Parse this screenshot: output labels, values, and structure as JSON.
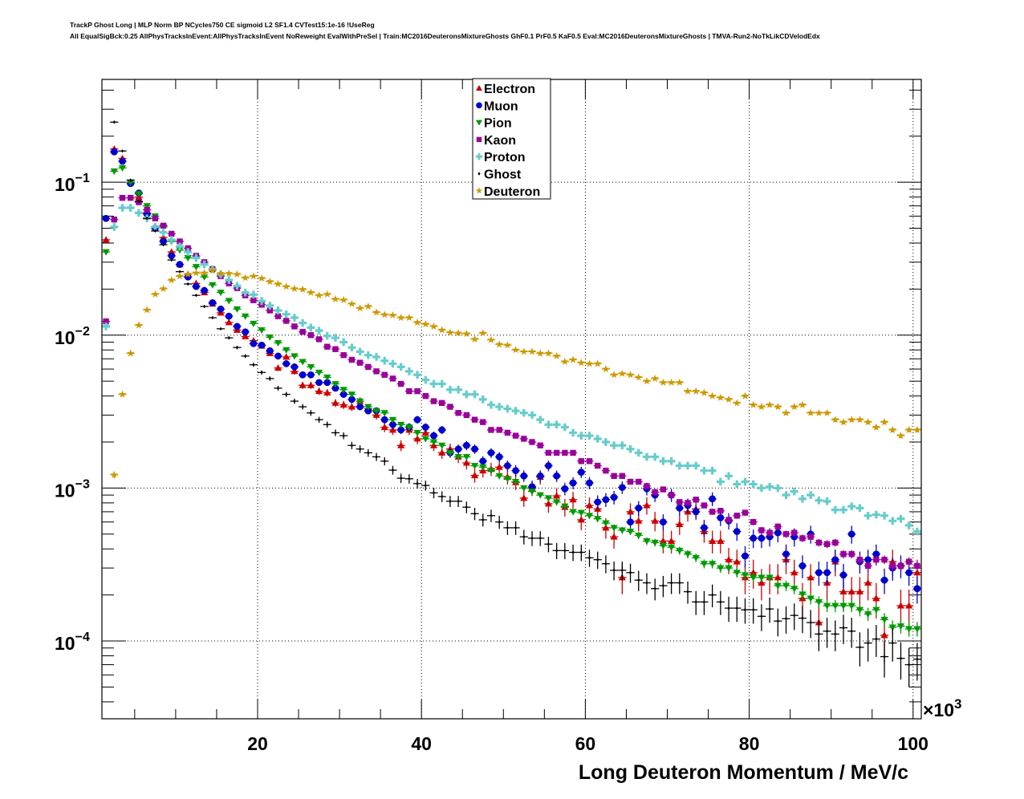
{
  "chart_data": {
    "type": "scatter",
    "title_lines": [
      "TrackP Ghost Long | MLP Norm BP NCycles750 CE sigmoid L2 SF1.4 CVTest15:1e-16 !UseReg",
      "All EqualSigBck:0.25 AllPhysTracksInEvent:AllPhysTracksInEvent NoReweight EvalWithPreSel | Train:MC2016DeuteronsMixtureGhosts GhF0.1 PrF0.5 KaF0.5 Eval:MC2016DeuteronsMixtureGhosts | TMVA-Run2-NoTkLikCDVelodEdx"
    ],
    "xlabel": "Long Deuteron Momentum / MeV/c",
    "x_multiplier_label": "×10",
    "x_multiplier_exp": "3",
    "xlim": [
      1,
      101
    ],
    "ylim": [
      3.1e-05,
      0.47
    ],
    "yscale": "log",
    "grid": true,
    "legend_position": "top-center",
    "x_ticks": [
      {
        "value": 20,
        "label": "20"
      },
      {
        "value": 40,
        "label": "40"
      },
      {
        "value": 60,
        "label": "60"
      },
      {
        "value": 80,
        "label": "80"
      },
      {
        "value": 100,
        "label": "100"
      }
    ],
    "y_ticks": [
      {
        "value": 0.1,
        "base": "10",
        "exp": "−1"
      },
      {
        "value": 0.01,
        "base": "10",
        "exp": "−2"
      },
      {
        "value": 0.001,
        "base": "10",
        "exp": "−3"
      },
      {
        "value": 0.0001,
        "base": "10",
        "exp": "−4"
      }
    ],
    "x": [
      1.5,
      2.5,
      3.5,
      4.5,
      5.5,
      6.5,
      7.5,
      8.5,
      9.5,
      10.5,
      11.5,
      12.5,
      13.5,
      14.5,
      15.5,
      16.5,
      17.5,
      18.5,
      19.5,
      20.5,
      21.5,
      22.5,
      23.5,
      24.5,
      25.5,
      26.5,
      27.5,
      28.5,
      29.5,
      30.5,
      31.5,
      32.5,
      33.5,
      34.5,
      35.5,
      36.5,
      37.5,
      38.5,
      39.5,
      40.5,
      41.5,
      42.5,
      43.5,
      44.5,
      45.5,
      46.5,
      47.5,
      48.5,
      49.5,
      50.5,
      51.5,
      52.5,
      53.5,
      54.5,
      55.5,
      56.5,
      57.5,
      58.5,
      59.5,
      60.5,
      61.5,
      62.5,
      63.5,
      64.5,
      65.5,
      66.5,
      67.5,
      68.5,
      69.5,
      70.5,
      71.5,
      72.5,
      73.5,
      74.5,
      75.5,
      76.5,
      77.5,
      78.5,
      79.5,
      80.5,
      81.5,
      82.5,
      83.5,
      84.5,
      85.5,
      86.5,
      87.5,
      88.5,
      89.5,
      90.5,
      91.5,
      92.5,
      93.5,
      94.5,
      95.5,
      96.5,
      97.5,
      98.5,
      99.5,
      100.5
    ],
    "series": [
      {
        "name": "Electron",
        "color": "#cc0000",
        "marker": "triangle-up",
        "yerr_frac": 0.06,
        "values": [
          0.042,
          0.165,
          0.143,
          0.1,
          0.08,
          0.063,
          0.051,
          0.0435,
          0.035,
          0.029,
          0.025,
          0.0218,
          0.019,
          0.016,
          0.014,
          0.0121,
          0.0108,
          0.0098,
          0.0092,
          0.0085,
          0.0076,
          0.0061,
          0.0072,
          0.0058,
          0.0047,
          0.0047,
          0.0043,
          0.0042,
          0.0036,
          0.0035,
          0.0034,
          0.0037,
          0.0033,
          0.003,
          0.0025,
          0.0024,
          0.0019,
          0.0024,
          0.0021,
          0.0023,
          0.0019,
          0.0017,
          0.0018,
          0.0016,
          0.00146,
          0.00121,
          0.0013,
          0.00133,
          0.00137,
          0.00118,
          0.00109,
          0.00086,
          0.001,
          0.00118,
          0.00079,
          0.00089,
          0.00075,
          0.00084,
          0.00062,
          0.00077,
          0.00073,
          0.00055,
          0.00048,
          0.00026,
          0.0007,
          0.00061,
          0.00077,
          0.00061,
          0.00045,
          0.00045,
          0.00058,
          0.0007,
          0.00073,
          0.00052,
          0.00045,
          0.00045,
          0.00034,
          0.00033,
          0.00026,
          0.00028,
          0.00024,
          0.00026,
          0.00026,
          0.00034,
          0.00028,
          0.00019,
          0.00026,
          0.000132,
          0.00024,
          0.00033,
          0.00021,
          0.00021,
          0.00021,
          0.00024,
          0.00019,
          0.000109,
          0.00033,
          0.00017,
          0.00017,
          0.00028
        ]
      },
      {
        "name": "Muon",
        "color": "#0000cc",
        "marker": "circle",
        "yerr_frac": 0.05,
        "values": [
          0.058,
          0.158,
          0.137,
          0.098,
          0.085,
          0.062,
          0.05,
          0.041,
          0.033,
          0.029,
          0.024,
          0.0208,
          0.0196,
          0.0163,
          0.0148,
          0.0133,
          0.0114,
          0.0105,
          0.0088,
          0.0086,
          0.0079,
          0.0073,
          0.0065,
          0.0062,
          0.0055,
          0.0055,
          0.0049,
          0.0049,
          0.0045,
          0.0041,
          0.0038,
          0.0034,
          0.0032,
          0.0032,
          0.0028,
          0.0026,
          0.0024,
          0.0025,
          0.0028,
          0.0025,
          0.0022,
          0.0024,
          0.0017,
          0.0018,
          0.0019,
          0.0018,
          0.0015,
          0.0017,
          0.0016,
          0.0014,
          0.0013,
          0.0012,
          0.00102,
          0.0012,
          0.0014,
          0.0012,
          0.00099,
          0.00108,
          0.00127,
          0.00108,
          0.00081,
          0.00084,
          0.00087,
          0.00101,
          0.0006,
          0.00074,
          0.00099,
          0.0009,
          0.0006,
          0.0009,
          0.00074,
          0.00077,
          0.0007,
          0.00055,
          0.00085,
          0.00064,
          0.00061,
          0.00052,
          0.00036,
          0.00047,
          0.00047,
          0.00048,
          0.00051,
          0.00037,
          0.00048,
          0.00031,
          0.0005,
          0.00028,
          0.00028,
          0.00034,
          0.00027,
          0.0005,
          0.00033,
          0.00034,
          0.00037,
          0.00025,
          0.0003,
          0.00031,
          0.00028,
          0.00022
        ]
      },
      {
        "name": "Pion",
        "color": "#009900",
        "marker": "triangle-down",
        "yerr_frac": 0.02,
        "values": [
          0.035,
          0.118,
          0.124,
          0.1,
          0.084,
          0.07,
          0.06,
          0.051,
          0.041,
          0.036,
          0.032,
          0.028,
          0.024,
          0.0213,
          0.019,
          0.0168,
          0.0148,
          0.0133,
          0.0119,
          0.0108,
          0.0097,
          0.0089,
          0.008,
          0.0073,
          0.0067,
          0.0062,
          0.0057,
          0.0053,
          0.0048,
          0.0044,
          0.0041,
          0.0037,
          0.0034,
          0.0032,
          0.0031,
          0.0028,
          0.0026,
          0.0025,
          0.0023,
          0.0021,
          0.002,
          0.0019,
          0.0017,
          0.0016,
          0.0016,
          0.0014,
          0.00137,
          0.0013,
          0.0012,
          0.00115,
          0.0011,
          0.001,
          0.00095,
          0.0009,
          0.00086,
          0.00081,
          0.00076,
          0.0007,
          0.00069,
          0.00066,
          0.00063,
          0.00059,
          0.00055,
          0.00053,
          0.00052,
          0.00049,
          0.00045,
          0.00044,
          0.00042,
          0.00041,
          0.00039,
          0.00037,
          0.00035,
          0.00032,
          0.00032,
          0.0003,
          0.0003,
          0.00028,
          0.00027,
          0.00026,
          0.00026,
          0.00026,
          0.00023,
          0.00023,
          0.00022,
          0.000202,
          0.00019,
          0.00018,
          0.00017,
          0.00017,
          0.00017,
          0.00017,
          0.00016,
          0.00015,
          0.00016,
          0.000138,
          0.000123,
          0.000125,
          0.00012,
          0.00012
        ]
      },
      {
        "name": "Kaon",
        "color": "#990099",
        "marker": "square",
        "yerr_frac": 0.02,
        "values": [
          0.0123,
          0.057,
          0.079,
          0.079,
          0.074,
          0.066,
          0.058,
          0.052,
          0.046,
          0.041,
          0.037,
          0.033,
          0.03,
          0.027,
          0.0243,
          0.0218,
          0.0203,
          0.0182,
          0.0169,
          0.0158,
          0.0145,
          0.0133,
          0.0124,
          0.0114,
          0.0105,
          0.01,
          0.0094,
          0.0084,
          0.0081,
          0.0074,
          0.0069,
          0.0066,
          0.0062,
          0.0058,
          0.0055,
          0.0052,
          0.0048,
          0.0043,
          0.0043,
          0.004,
          0.0037,
          0.0036,
          0.0034,
          0.0031,
          0.003,
          0.0028,
          0.0027,
          0.0024,
          0.0024,
          0.0023,
          0.0022,
          0.0021,
          0.002,
          0.0019,
          0.0017,
          0.0017,
          0.0017,
          0.0017,
          0.0015,
          0.0015,
          0.0014,
          0.0013,
          0.0012,
          0.0012,
          0.0011,
          0.0011,
          0.00103,
          0.00094,
          0.00098,
          0.0009,
          0.00081,
          0.0008,
          0.00084,
          0.00077,
          0.0007,
          0.00071,
          0.00062,
          0.00066,
          0.00069,
          0.0006,
          0.00053,
          0.00051,
          0.00056,
          0.0005,
          0.00051,
          0.00047,
          0.00048,
          0.00044,
          0.00043,
          0.00044,
          0.00037,
          0.00037,
          0.00034,
          0.00031,
          0.00034,
          0.00034,
          0.00031,
          0.00031,
          0.00033,
          0.00031
        ]
      },
      {
        "name": "Proton",
        "color": "#66cccc",
        "marker": "cross",
        "yerr_frac": 0.02,
        "values": [
          0.0114,
          0.051,
          0.068,
          0.068,
          0.063,
          0.058,
          0.051,
          0.047,
          0.042,
          0.038,
          0.035,
          0.032,
          0.029,
          0.027,
          0.025,
          0.0229,
          0.021,
          0.019,
          0.0184,
          0.0167,
          0.0156,
          0.0145,
          0.0137,
          0.013,
          0.012,
          0.0112,
          0.0107,
          0.0099,
          0.0096,
          0.009,
          0.0083,
          0.0078,
          0.0074,
          0.0072,
          0.0068,
          0.0065,
          0.0062,
          0.0058,
          0.0055,
          0.0051,
          0.0048,
          0.0048,
          0.0044,
          0.0044,
          0.0041,
          0.0041,
          0.0038,
          0.0035,
          0.0034,
          0.0033,
          0.0032,
          0.0031,
          0.003,
          0.0028,
          0.0026,
          0.0026,
          0.0025,
          0.0023,
          0.0022,
          0.0022,
          0.0021,
          0.002,
          0.0019,
          0.0019,
          0.0018,
          0.0017,
          0.0016,
          0.0016,
          0.0015,
          0.0015,
          0.0014,
          0.0014,
          0.0014,
          0.0013,
          0.0013,
          0.0011,
          0.0012,
          0.00106,
          0.0011,
          0.00106,
          0.001,
          0.00102,
          0.001,
          0.0009,
          0.00095,
          0.00085,
          0.0009,
          0.00083,
          0.00082,
          0.00072,
          0.00072,
          0.00076,
          0.00074,
          0.00066,
          0.00067,
          0.00066,
          0.00061,
          0.00063,
          0.00057,
          0.00052
        ]
      },
      {
        "name": "Ghost",
        "color": "#000000",
        "marker": "dot",
        "yerr_frac": 0.04,
        "values": [
          null,
          0.247,
          0.16,
          0.103,
          0.075,
          0.058,
          0.048,
          0.039,
          0.031,
          0.026,
          0.0216,
          0.0182,
          0.0154,
          0.013,
          0.011,
          0.0096,
          0.0083,
          0.0073,
          0.0064,
          0.0057,
          0.0052,
          0.0045,
          0.0041,
          0.0037,
          0.0034,
          0.0031,
          0.0028,
          0.0026,
          0.0023,
          0.0022,
          0.0019,
          0.0018,
          0.0017,
          0.0016,
          0.0015,
          0.00131,
          0.00116,
          0.00115,
          0.00107,
          0.00104,
          0.00093,
          0.00088,
          0.00082,
          0.00082,
          0.00075,
          0.00068,
          0.00062,
          0.00066,
          0.0006,
          0.00055,
          0.00055,
          0.00048,
          0.00047,
          0.00047,
          0.00043,
          0.00039,
          0.00039,
          0.00038,
          0.00038,
          0.00035,
          0.00034,
          0.00032,
          0.00029,
          0.00029,
          0.00028,
          0.00025,
          0.00024,
          0.00022,
          0.00023,
          0.00024,
          0.00024,
          0.00021,
          0.00018,
          0.00018,
          0.0002,
          0.00018,
          0.000164,
          0.000164,
          0.00016,
          0.00016,
          0.000145,
          0.000162,
          0.000135,
          0.00014,
          0.000147,
          0.000141,
          0.000132,
          0.000111,
          0.000116,
          0.000111,
          0.000122,
          0.000116,
          9.1e-05,
          9.7e-05,
          0.000103,
          7.9e-05,
          9.7e-05,
          7.7e-05,
          7e-05,
          7.6e-05
        ]
      },
      {
        "name": "Deuteron",
        "color": "#cc9900",
        "marker": "star",
        "yerr_frac": 0.03,
        "values": [
          null,
          0.00122,
          0.0041,
          0.0076,
          0.0116,
          0.0146,
          0.0185,
          0.0201,
          0.0229,
          0.0243,
          0.025,
          0.0255,
          0.0255,
          0.0265,
          0.0253,
          0.0253,
          0.025,
          0.0237,
          0.0243,
          0.0235,
          0.0224,
          0.0216,
          0.0208,
          0.0201,
          0.0199,
          0.019,
          0.0182,
          0.0185,
          0.0172,
          0.017,
          0.016,
          0.015,
          0.0154,
          0.0141,
          0.0136,
          0.0135,
          0.013,
          0.013,
          0.0121,
          0.0118,
          0.0114,
          0.0108,
          0.0104,
          0.0103,
          0.0102,
          0.0094,
          0.0103,
          0.0093,
          0.0087,
          0.0086,
          0.008,
          0.0078,
          0.0078,
          0.0076,
          0.0076,
          0.0073,
          0.0067,
          0.0069,
          0.0066,
          0.0065,
          0.0065,
          0.006,
          0.0055,
          0.0056,
          0.0055,
          0.0053,
          0.005,
          0.0052,
          0.0049,
          0.0049,
          0.0049,
          0.0043,
          0.0043,
          0.0042,
          0.004,
          0.0039,
          0.0038,
          0.0036,
          0.004,
          0.0035,
          0.0034,
          0.0035,
          0.0034,
          0.0031,
          0.0034,
          0.0035,
          0.0031,
          0.0031,
          0.0031,
          0.0028,
          0.0027,
          0.0028,
          0.0028,
          0.0027,
          0.0025,
          0.0027,
          0.0024,
          0.0022,
          0.0024,
          0.0024
        ]
      }
    ]
  }
}
